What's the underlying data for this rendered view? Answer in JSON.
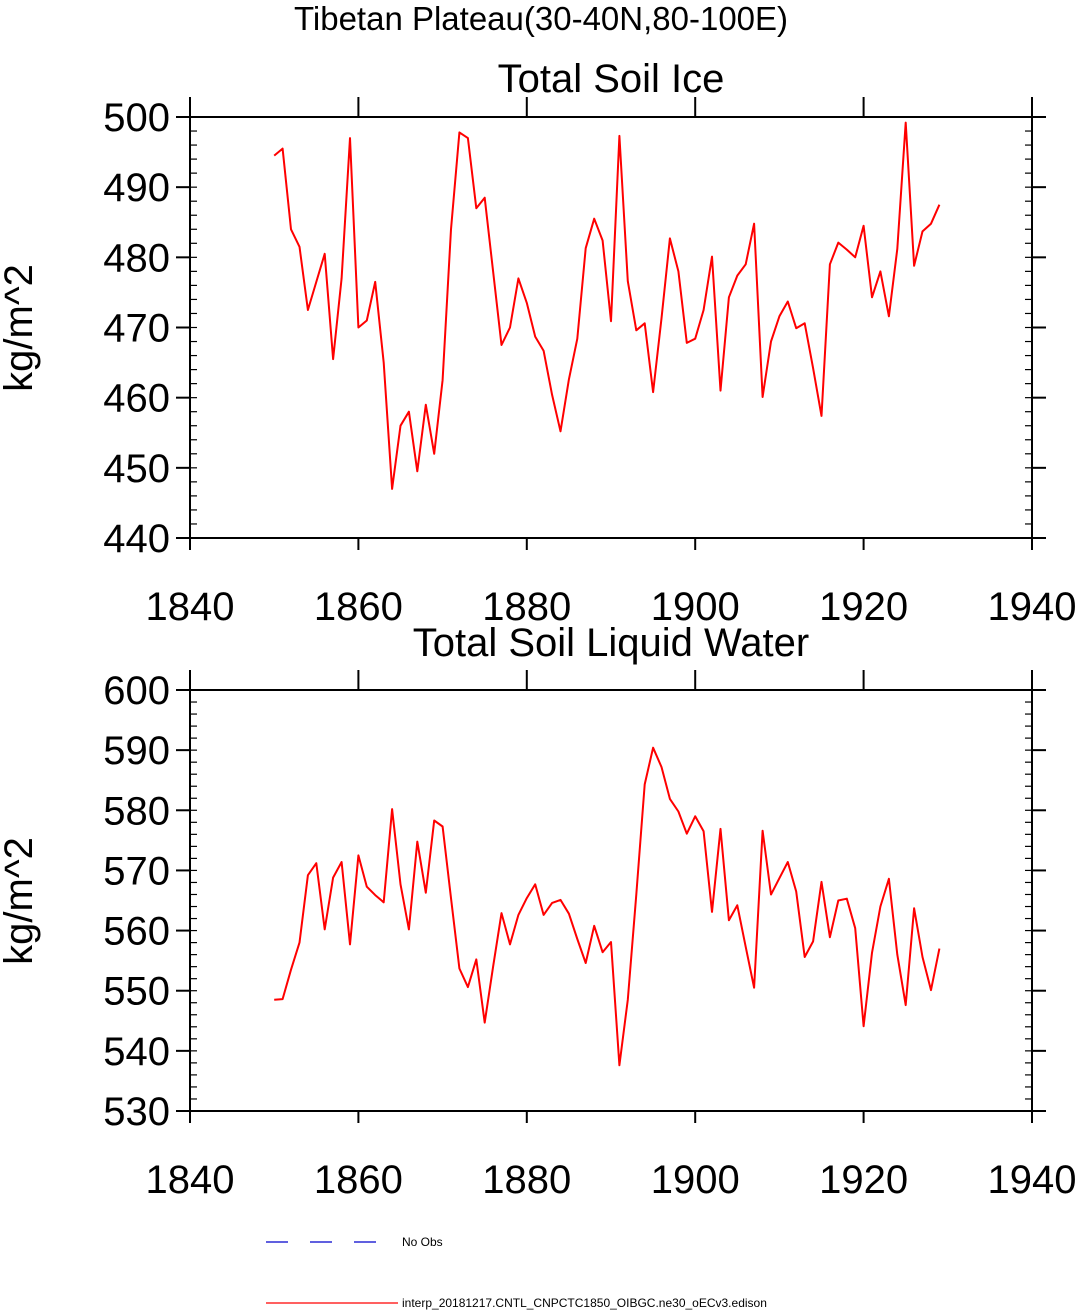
{
  "figure_title": "Tibetan Plateau(30-40N,80-100E)",
  "chart_data": [
    {
      "type": "line",
      "title": "Total Soil Ice",
      "xlabel": "",
      "ylabel": "kg/m^2",
      "xlim": [
        1840,
        1940
      ],
      "ylim": [
        440,
        500
      ],
      "xticks": [
        1840,
        1860,
        1880,
        1900,
        1920,
        1940
      ],
      "yticks": [
        440,
        450,
        460,
        470,
        480,
        490,
        500
      ],
      "series": [
        {
          "name": "interp_20181217.CNTL_CNPCTC1850_OIBGC.ne30_oECv3.edison",
          "color": "#ff0000",
          "x": [
            1850,
            1851,
            1852,
            1853,
            1854,
            1855,
            1856,
            1857,
            1858,
            1859,
            1860,
            1861,
            1862,
            1863,
            1864,
            1865,
            1866,
            1867,
            1868,
            1869,
            1870,
            1871,
            1872,
            1873,
            1874,
            1875,
            1876,
            1877,
            1878,
            1879,
            1880,
            1881,
            1882,
            1883,
            1884,
            1885,
            1886,
            1887,
            1888,
            1889,
            1890,
            1891,
            1892,
            1893,
            1894,
            1895,
            1896,
            1897,
            1898,
            1899,
            1900,
            1901,
            1902,
            1903,
            1904,
            1905,
            1906,
            1907,
            1908,
            1909,
            1910,
            1911,
            1912,
            1913,
            1914,
            1915,
            1916,
            1917,
            1918,
            1919,
            1920,
            1921,
            1922,
            1923,
            1924,
            1925,
            1926,
            1927,
            1928,
            1929
          ],
          "values": [
            494.5,
            495.5,
            484.0,
            481.5,
            472.5,
            476.5,
            480.5,
            465.5,
            477.0,
            497.0,
            470.0,
            471.0,
            476.5,
            465.0,
            447.0,
            456.0,
            458.0,
            449.5,
            459.0,
            452.0,
            462.5,
            484.0,
            497.8,
            497.0,
            487.0,
            488.5,
            478.0,
            467.5,
            470.0,
            477.0,
            473.5,
            468.7,
            466.7,
            460.4,
            455.2,
            462.6,
            468.4,
            481.3,
            485.5,
            482.4,
            470.9,
            497.3,
            476.6,
            469.6,
            470.6,
            460.8,
            471.3,
            482.7,
            478.0,
            467.8,
            468.4,
            472.5,
            480.1,
            461.0,
            474.3,
            477.4,
            479.0,
            484.8,
            460.1,
            468.0,
            471.6,
            473.7,
            469.9,
            470.6,
            464.2,
            457.4,
            479.0,
            482.1,
            481.1,
            480.0,
            484.5,
            474.3,
            478.0,
            471.6,
            481.2,
            499.2,
            478.8,
            483.7,
            484.8,
            487.5
          ]
        }
      ]
    },
    {
      "type": "line",
      "title": "Total Soil Liquid Water",
      "xlabel": "",
      "ylabel": "kg/m^2",
      "xlim": [
        1840,
        1940
      ],
      "ylim": [
        530,
        600
      ],
      "xticks": [
        1840,
        1860,
        1880,
        1900,
        1920,
        1940
      ],
      "yticks": [
        530,
        540,
        550,
        560,
        570,
        580,
        590,
        600
      ],
      "series": [
        {
          "name": "interp_20181217.CNTL_CNPCTC1850_OIBGC.ne30_oECv3.edison",
          "color": "#ff0000",
          "x": [
            1850,
            1851,
            1852,
            1853,
            1854,
            1855,
            1856,
            1857,
            1858,
            1859,
            1860,
            1861,
            1862,
            1863,
            1864,
            1865,
            1866,
            1867,
            1868,
            1869,
            1870,
            1871,
            1872,
            1873,
            1874,
            1875,
            1876,
            1877,
            1878,
            1879,
            1880,
            1881,
            1882,
            1883,
            1884,
            1885,
            1886,
            1887,
            1888,
            1889,
            1890,
            1891,
            1892,
            1893,
            1894,
            1895,
            1896,
            1897,
            1898,
            1899,
            1900,
            1901,
            1902,
            1903,
            1904,
            1905,
            1906,
            1907,
            1908,
            1909,
            1910,
            1911,
            1912,
            1913,
            1914,
            1915,
            1916,
            1917,
            1918,
            1919,
            1920,
            1921,
            1922,
            1923,
            1924,
            1925,
            1926,
            1927,
            1928,
            1929
          ],
          "values": [
            548.5,
            548.6,
            553.5,
            558.0,
            569.2,
            571.2,
            560.2,
            568.8,
            571.4,
            557.7,
            572.5,
            567.3,
            565.9,
            564.7,
            580.2,
            567.7,
            560.2,
            574.8,
            566.3,
            578.3,
            577.3,
            565.4,
            553.7,
            550.6,
            555.2,
            544.7,
            554.0,
            562.9,
            557.7,
            562.6,
            565.4,
            567.7,
            562.6,
            564.6,
            565.1,
            562.8,
            558.6,
            554.6,
            560.8,
            556.4,
            558.1,
            537.6,
            548.5,
            566.0,
            584.3,
            590.4,
            587.2,
            581.9,
            579.8,
            576.1,
            579.0,
            576.5,
            563.1,
            576.9,
            561.7,
            564.2,
            557.3,
            550.5,
            576.6,
            566.0,
            568.7,
            571.4,
            566.5,
            555.6,
            558.2,
            568.1,
            558.9,
            565.0,
            565.3,
            560.4,
            544.1,
            556.3,
            564.0,
            568.6,
            556.0,
            547.6,
            563.7,
            555.6,
            550.1,
            557.0
          ]
        }
      ]
    }
  ],
  "legend": {
    "placement": "bottom",
    "items": [
      {
        "label": "No Obs",
        "color": "#0000cc",
        "style": "dashed"
      },
      {
        "label": "interp_20181217.CNTL_CNPCTC1850_OIBGC.ne30_oECv3.edison",
        "color": "#ff0000",
        "style": "solid"
      }
    ]
  }
}
